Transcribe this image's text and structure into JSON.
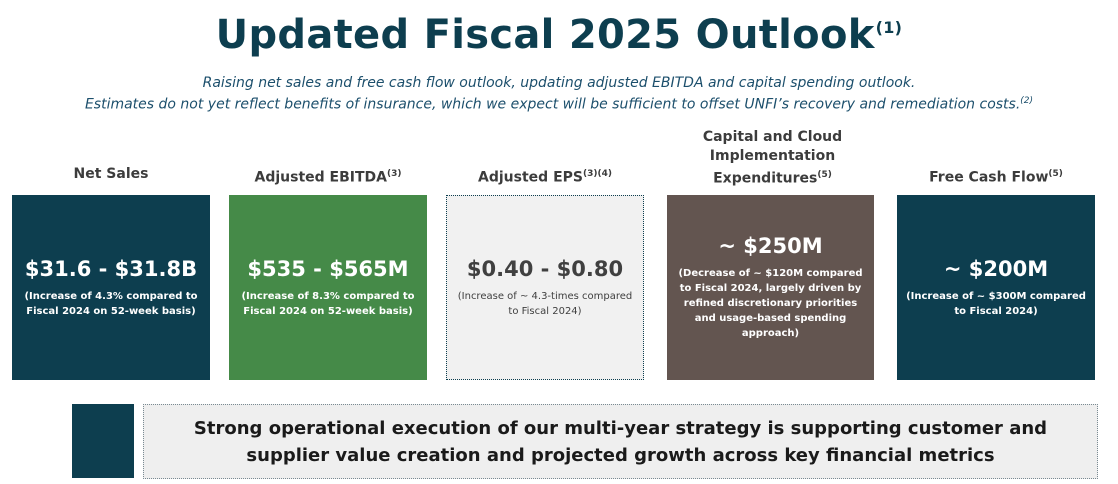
{
  "title": {
    "text": "Updated Fiscal 2025 Outlook",
    "footnote": "(1)"
  },
  "subtitle": {
    "line1": "Raising net sales and free cash flow outlook, updating adjusted EBITDA and capital spending outlook.",
    "line2": "Estimates do not yet reflect benefits of insurance, which we expect will be sufficient to offset UNFI’s recovery and remediation costs.",
    "line2_footnote": "(2)"
  },
  "metrics": [
    {
      "label": "Net Sales",
      "footnote": "",
      "value": "$31.6 - $31.8B",
      "note": "(Increase of 4.3% compared to Fiscal 2024 on 52-week basis)"
    },
    {
      "label": "Adjusted EBITDA",
      "footnote": "(3)",
      "value": "$535 - $565M",
      "note": "(Increase of 8.3% compared to Fiscal 2024 on 52-week basis)"
    },
    {
      "label": "Adjusted EPS",
      "footnote": "(3)(4)",
      "value": "$0.40 - $0.80",
      "note": "(Increase of ~ 4.3-times compared to Fiscal 2024)"
    },
    {
      "label": "Capital and Cloud Implementation Expenditures",
      "footnote": "(5)",
      "value": "~ $250M",
      "note": "(Decrease of ~ $120M compared to Fiscal 2024, largely driven by refined discretionary priorities and usage-based spending approach)"
    },
    {
      "label": "Free Cash Flow",
      "footnote": "(5)",
      "value": "~ $200M",
      "note": "(Increase of ~ $300M compared to Fiscal 2024)"
    }
  ],
  "bottom": {
    "text": "Strong operational execution of our multi-year strategy is supporting customer and supplier value creation and projected growth across key financial metrics"
  },
  "colors": {
    "navy": "#0d3e4f",
    "green": "#458a48",
    "gray": "#f1f1f1",
    "brown": "#635550"
  }
}
